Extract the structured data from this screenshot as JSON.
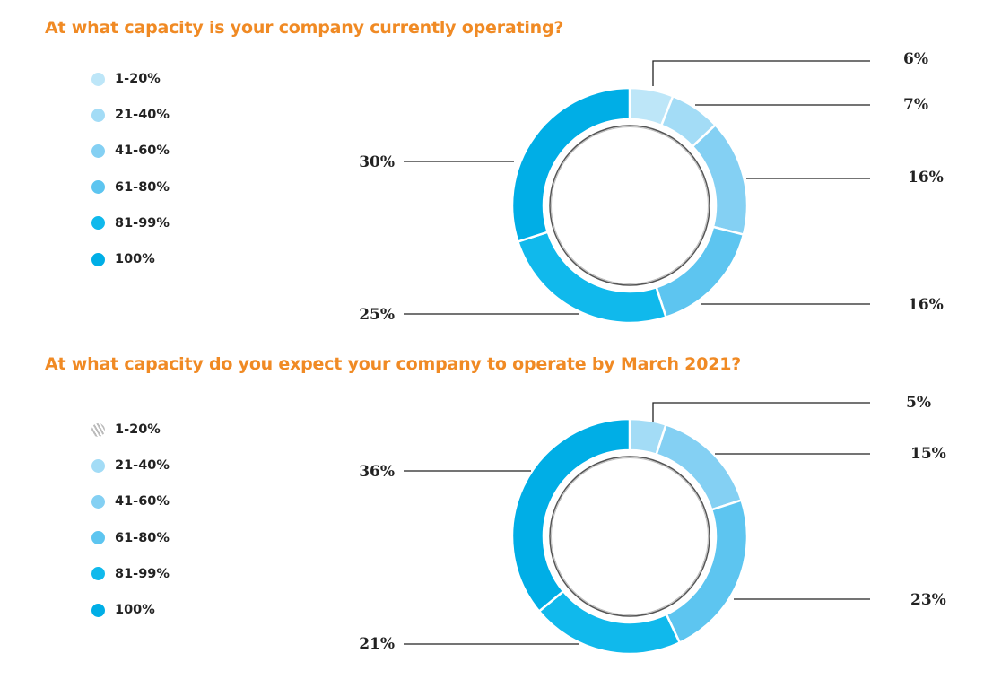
{
  "chart_data": [
    {
      "type": "pie",
      "title": "At what capacity is your company currently operating?",
      "categories": [
        "1-20%",
        "21-40%",
        "41-60%",
        "61-80%",
        "81-99%",
        "100%"
      ],
      "values": [
        6,
        7,
        16,
        16,
        25,
        30
      ],
      "labels": [
        "6%",
        "7%",
        "16%",
        "16%",
        "25%",
        "30%"
      ],
      "colors": [
        "#bde6f8",
        "#a3dcf6",
        "#84d0f3",
        "#5dc5f0",
        "#10b9ec",
        "#00aee6"
      ],
      "legend": "left"
    },
    {
      "type": "pie",
      "title": "At what capacity do you expect your company to operate by March 2021?",
      "categories": [
        "1-20%",
        "21-40%",
        "41-60%",
        "61-80%",
        "81-99%",
        "100%"
      ],
      "values": [
        0,
        5,
        15,
        23,
        21,
        36
      ],
      "labels": [
        "",
        "5%",
        "15%",
        "23%",
        "21%",
        "36%"
      ],
      "colors": [
        "#bbbbbb",
        "#a3dcf6",
        "#84d0f3",
        "#5dc5f0",
        "#10b9ec",
        "#00aee6"
      ],
      "legend": "left"
    }
  ]
}
